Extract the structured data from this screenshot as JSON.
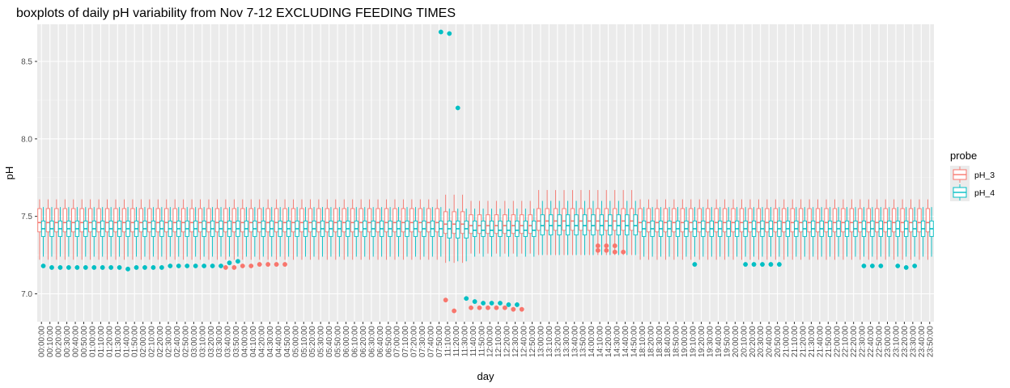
{
  "chart_data": {
    "type": "boxplot",
    "title": "boxplots of daily pH variability from Nov 7-12 EXCLUDING FEEDING TIMES",
    "xlabel": "day",
    "ylabel": "pH",
    "ylim": [
      6.82,
      8.74
    ],
    "y_ticks": [
      7.0,
      7.5,
      8.0,
      8.5
    ],
    "y_tick_labels": [
      "7.0",
      "7.5",
      "8.0",
      "8.5"
    ],
    "grid": true,
    "legend": {
      "title": "probe",
      "position": "right"
    },
    "categories": [
      "00:00:00",
      "00:10:00",
      "00:20:00",
      "00:30:00",
      "00:40:00",
      "00:50:00",
      "01:00:00",
      "01:10:00",
      "01:20:00",
      "01:30:00",
      "01:40:00",
      "01:50:00",
      "02:00:00",
      "02:10:00",
      "02:20:00",
      "02:30:00",
      "02:40:00",
      "02:50:00",
      "03:00:00",
      "03:10:00",
      "03:20:00",
      "03:30:00",
      "03:40:00",
      "03:50:00",
      "04:00:00",
      "04:10:00",
      "04:20:00",
      "04:30:00",
      "04:40:00",
      "04:50:00",
      "05:00:00",
      "05:10:00",
      "05:20:00",
      "05:30:00",
      "05:40:00",
      "05:50:00",
      "06:00:00",
      "06:10:00",
      "06:20:00",
      "06:30:00",
      "06:40:00",
      "06:50:00",
      "07:00:00",
      "07:10:00",
      "07:20:00",
      "07:30:00",
      "07:40:00",
      "07:50:00",
      "11:10:00",
      "11:20:00",
      "11:30:00",
      "11:40:00",
      "11:50:00",
      "12:00:00",
      "12:10:00",
      "12:20:00",
      "12:30:00",
      "12:40:00",
      "12:50:00",
      "13:00:00",
      "13:10:00",
      "13:20:00",
      "13:30:00",
      "13:40:00",
      "13:50:00",
      "14:00:00",
      "14:10:00",
      "14:20:00",
      "14:30:00",
      "14:40:00",
      "14:50:00",
      "18:10:00",
      "18:20:00",
      "18:30:00",
      "18:40:00",
      "18:50:00",
      "19:00:00",
      "19:10:00",
      "19:20:00",
      "19:30:00",
      "19:40:00",
      "19:50:00",
      "20:00:00",
      "20:10:00",
      "20:20:00",
      "20:30:00",
      "20:40:00",
      "20:50:00",
      "21:00:00",
      "21:10:00",
      "21:20:00",
      "21:30:00",
      "21:40:00",
      "21:50:00",
      "22:00:00",
      "22:10:00",
      "22:20:00",
      "22:30:00",
      "22:40:00",
      "22:50:00",
      "23:00:00",
      "23:10:00",
      "23:20:00",
      "23:30:00",
      "23:40:00",
      "23:50:00"
    ],
    "series": [
      {
        "name": "pH_3",
        "color": "#F8766D",
        "typical": {
          "whisker_low": 7.22,
          "q1": 7.4,
          "median": 7.46,
          "q3": 7.55,
          "whisker_high": 7.61
        },
        "segments": [
          {
            "from": 48,
            "to": 50,
            "whisker_low": 7.2,
            "q1": 7.39,
            "median": 7.45,
            "q3": 7.53,
            "whisker_high": 7.64
          },
          {
            "from": 51,
            "to": 58,
            "whisker_low": 7.26,
            "q1": 7.39,
            "median": 7.44,
            "q3": 7.51,
            "whisker_high": 7.6
          },
          {
            "from": 59,
            "to": 70,
            "whisker_low": 7.25,
            "q1": 7.41,
            "median": 7.47,
            "q3": 7.55,
            "whisker_high": 7.67
          }
        ],
        "outliers": [
          [
            48,
            6.96
          ],
          [
            49,
            6.89
          ],
          [
            51,
            6.91
          ],
          [
            52,
            6.91
          ],
          [
            53,
            6.91
          ],
          [
            54,
            6.91
          ],
          [
            55,
            6.91
          ],
          [
            56,
            6.9
          ],
          [
            57,
            6.9
          ],
          [
            66,
            7.31
          ],
          [
            66,
            7.28
          ],
          [
            67,
            7.31
          ],
          [
            67,
            7.28
          ],
          [
            68,
            7.31
          ],
          [
            68,
            7.27
          ],
          [
            69,
            7.27
          ],
          [
            22,
            7.17
          ],
          [
            23,
            7.17
          ],
          [
            24,
            7.18
          ],
          [
            25,
            7.18
          ],
          [
            26,
            7.19
          ],
          [
            27,
            7.19
          ],
          [
            28,
            7.19
          ],
          [
            29,
            7.19
          ]
        ]
      },
      {
        "name": "pH_4",
        "color": "#00BFC4",
        "typical": {
          "whisker_low": 7.24,
          "q1": 7.37,
          "median": 7.42,
          "q3": 7.47,
          "whisker_high": 7.56
        },
        "segments": [
          {
            "from": 48,
            "to": 50,
            "whisker_low": 7.21,
            "q1": 7.36,
            "median": 7.42,
            "q3": 7.47,
            "whisker_high": 7.55
          },
          {
            "from": 51,
            "to": 58,
            "whisker_low": 7.24,
            "q1": 7.37,
            "median": 7.41,
            "q3": 7.47,
            "whisker_high": 7.55
          },
          {
            "from": 59,
            "to": 70,
            "whisker_low": 7.25,
            "q1": 7.38,
            "median": 7.44,
            "q3": 7.51,
            "whisker_high": 7.6
          }
        ],
        "outliers": [
          [
            0,
            7.18
          ],
          [
            1,
            7.17
          ],
          [
            2,
            7.17
          ],
          [
            3,
            7.17
          ],
          [
            4,
            7.17
          ],
          [
            5,
            7.17
          ],
          [
            6,
            7.17
          ],
          [
            7,
            7.17
          ],
          [
            8,
            7.17
          ],
          [
            9,
            7.17
          ],
          [
            10,
            7.16
          ],
          [
            11,
            7.17
          ],
          [
            12,
            7.17
          ],
          [
            13,
            7.17
          ],
          [
            14,
            7.17
          ],
          [
            15,
            7.18
          ],
          [
            16,
            7.18
          ],
          [
            17,
            7.18
          ],
          [
            18,
            7.18
          ],
          [
            19,
            7.18
          ],
          [
            20,
            7.18
          ],
          [
            21,
            7.18
          ],
          [
            22,
            7.2
          ],
          [
            23,
            7.21
          ],
          [
            47,
            8.69
          ],
          [
            48,
            8.68
          ],
          [
            49,
            8.2
          ],
          [
            50,
            6.97
          ],
          [
            51,
            6.95
          ],
          [
            52,
            6.94
          ],
          [
            53,
            6.94
          ],
          [
            54,
            6.94
          ],
          [
            55,
            6.93
          ],
          [
            56,
            6.93
          ],
          [
            77,
            7.19
          ],
          [
            83,
            7.19
          ],
          [
            84,
            7.19
          ],
          [
            85,
            7.19
          ],
          [
            86,
            7.19
          ],
          [
            87,
            7.19
          ],
          [
            97,
            7.18
          ],
          [
            98,
            7.18
          ],
          [
            99,
            7.18
          ],
          [
            101,
            7.18
          ],
          [
            102,
            7.17
          ],
          [
            103,
            7.18
          ]
        ]
      }
    ]
  }
}
